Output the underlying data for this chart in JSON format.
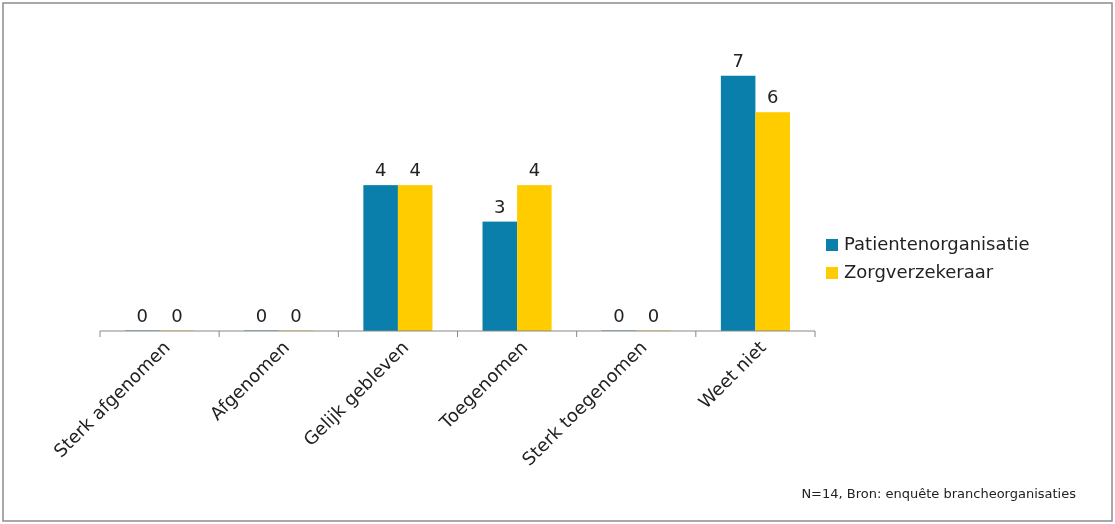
{
  "chart_data": {
    "type": "bar",
    "categories": [
      "Sterk afgenomen",
      "Afgenomen",
      "Gelijk gebleven",
      "Toegenomen",
      "Sterk toegenomen",
      "Weet niet"
    ],
    "series": [
      {
        "name": "Patientenorganisatie",
        "color": "#0a7fab",
        "values": [
          0,
          0,
          4,
          3,
          0,
          7
        ]
      },
      {
        "name": "Zorgverzekeraar",
        "color": "#ffcc00",
        "values": [
          0,
          0,
          4,
          4,
          0,
          6
        ]
      }
    ],
    "data_labels": true,
    "legend": "right",
    "annotations": [
      "N=14, Bron: enquête brancheorganisaties"
    ]
  }
}
